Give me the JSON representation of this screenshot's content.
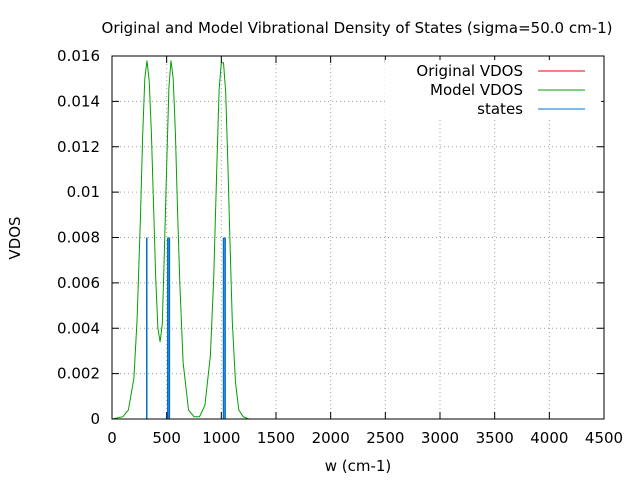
{
  "chart_data": {
    "type": "line",
    "title": "Original and Model Vibrational Density of States (sigma=50.0 cm-1)",
    "xlabel": "w (cm-1)",
    "ylabel": "VDOS",
    "xlim": [
      0,
      4500
    ],
    "ylim": [
      0,
      0.016
    ],
    "x_ticks": [
      "0",
      "500",
      "1000",
      "1500",
      "2000",
      "2500",
      "3000",
      "3500",
      "4000",
      "4500"
    ],
    "y_ticks": [
      "0",
      "0.002",
      "0.004",
      "0.006",
      "0.008",
      "0.01",
      "0.012",
      "0.014",
      "0.016"
    ],
    "grid": true,
    "legend_position": "top-right",
    "series": [
      {
        "name": "Original VDOS",
        "color": "#ff0000",
        "x": [],
        "y": []
      },
      {
        "name": "Model VDOS",
        "color": "#00a000",
        "x": [
          0,
          100,
          150,
          200,
          230,
          260,
          280,
          300,
          320,
          340,
          360,
          380,
          400,
          420,
          440,
          460,
          480,
          500,
          520,
          540,
          560,
          580,
          600,
          620,
          650,
          700,
          750,
          800,
          850,
          900,
          930,
          960,
          980,
          1000,
          1020,
          1040,
          1060,
          1080,
          1100,
          1130,
          1160,
          1200,
          1250,
          1300,
          1400,
          2000,
          3000,
          4000,
          4300
        ],
        "y": [
          0,
          0.0001,
          0.0004,
          0.0018,
          0.0044,
          0.0088,
          0.0124,
          0.015,
          0.0158,
          0.0149,
          0.0126,
          0.0095,
          0.0062,
          0.004,
          0.0034,
          0.0042,
          0.0076,
          0.0112,
          0.0146,
          0.0158,
          0.015,
          0.0126,
          0.0091,
          0.006,
          0.0025,
          0.0004,
          0.0001,
          0.0001,
          0.0006,
          0.0028,
          0.0062,
          0.0114,
          0.0145,
          0.0157,
          0.0157,
          0.0144,
          0.0112,
          0.0076,
          0.0043,
          0.0016,
          0.0004,
          0.0001,
          0,
          0,
          0,
          0,
          0,
          0,
          0
        ]
      },
      {
        "name": "states",
        "color": "#0070d0",
        "type": "impulse",
        "x": [
          318,
          510,
          525,
          1020,
          1035
        ],
        "y": [
          0.008,
          0.008,
          0.008,
          0.008,
          0.008
        ]
      }
    ]
  }
}
